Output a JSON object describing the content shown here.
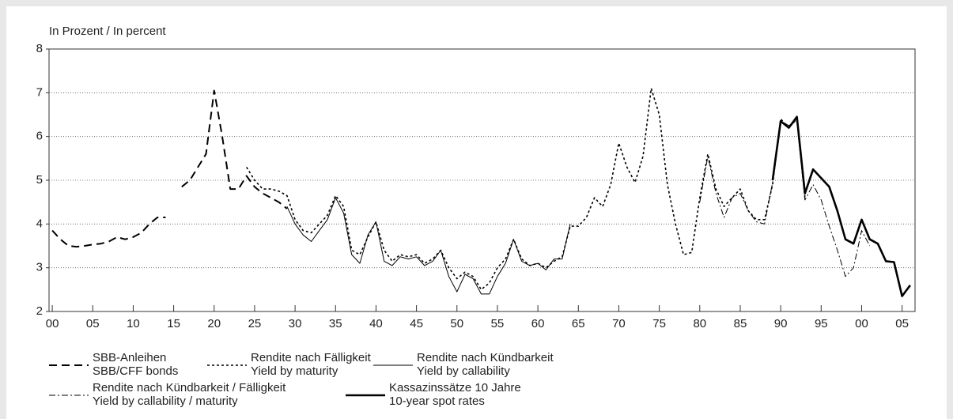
{
  "chart_data": {
    "type": "line",
    "y_label": "In Prozent / In percent",
    "xlim": [
      1899.6,
      2006.6
    ],
    "ylim": [
      2,
      8
    ],
    "yticks": [
      2,
      3,
      4,
      5,
      6,
      7,
      8
    ],
    "xticks": [
      {
        "value": 1900,
        "label": "00"
      },
      {
        "value": 1905,
        "label": "05"
      },
      {
        "value": 1910,
        "label": "10"
      },
      {
        "value": 1915,
        "label": "15"
      },
      {
        "value": 1920,
        "label": "20"
      },
      {
        "value": 1925,
        "label": "25"
      },
      {
        "value": 1930,
        "label": "30"
      },
      {
        "value": 1935,
        "label": "35"
      },
      {
        "value": 1940,
        "label": "40"
      },
      {
        "value": 1945,
        "label": "45"
      },
      {
        "value": 1950,
        "label": "50"
      },
      {
        "value": 1955,
        "label": "55"
      },
      {
        "value": 1960,
        "label": "60"
      },
      {
        "value": 1965,
        "label": "65"
      },
      {
        "value": 1970,
        "label": "70"
      },
      {
        "value": 1975,
        "label": "75"
      },
      {
        "value": 1980,
        "label": "80"
      },
      {
        "value": 1985,
        "label": "85"
      },
      {
        "value": 1990,
        "label": "90"
      },
      {
        "value": 1995,
        "label": "95"
      },
      {
        "value": 2000,
        "label": "00"
      },
      {
        "value": 2005,
        "label": "05"
      }
    ],
    "grid": true,
    "series": [
      {
        "name": [
          "SBB-Anleihen",
          "SBB/CFF bonds"
        ],
        "style": "dashed",
        "color": "#000000",
        "x": [
          1900,
          1901,
          1902,
          1903,
          1904,
          1905,
          1906,
          1907,
          1908,
          1909,
          1910,
          1911,
          1912,
          1913,
          1914,
          1915,
          1916,
          1917,
          1918,
          1919,
          1920,
          1921,
          1922,
          1923,
          1924,
          1925,
          1926,
          1927,
          1928,
          1929
        ],
        "values": [
          3.85,
          3.65,
          3.5,
          3.48,
          3.5,
          3.53,
          3.55,
          3.6,
          3.7,
          3.65,
          3.7,
          3.8,
          4.0,
          4.15,
          4.15,
          null,
          4.85,
          5.0,
          5.3,
          5.6,
          7.05,
          6.0,
          4.8,
          4.8,
          5.1,
          4.85,
          4.7,
          4.6,
          4.5,
          4.35
        ]
      },
      {
        "name": [
          "Rendite nach Fälligkeit",
          "Yield by maturity"
        ],
        "style": "dotted",
        "color": "#000000",
        "x": [
          1924,
          1925,
          1926,
          1927,
          1928,
          1929,
          1930,
          1931,
          1932,
          1933,
          1934,
          1935,
          1936,
          1937,
          1938,
          1939,
          1940,
          1941,
          1942,
          1943,
          1944,
          1945,
          1946,
          1947,
          1948,
          1949,
          1950,
          1951,
          1952,
          1953,
          1954,
          1955,
          1956,
          1957,
          1958,
          1959,
          1960,
          1961,
          1962,
          1963,
          1964,
          1965,
          1966,
          1967,
          1968,
          1969,
          1970,
          1971,
          1972,
          1973,
          1974,
          1975,
          1976,
          1977,
          1978,
          1979,
          1980,
          1981,
          1982,
          1983,
          1984,
          1985,
          1986,
          1987,
          1988,
          1989,
          1990,
          1991,
          1992,
          1993
        ],
        "values": [
          5.3,
          5.0,
          4.8,
          4.8,
          4.75,
          4.65,
          4.1,
          3.85,
          3.8,
          4.0,
          4.2,
          4.65,
          4.4,
          3.4,
          3.3,
          3.7,
          4.05,
          3.4,
          3.15,
          3.3,
          3.25,
          3.3,
          3.1,
          3.2,
          3.4,
          3.0,
          2.75,
          2.9,
          2.8,
          2.5,
          2.65,
          3.0,
          3.2,
          3.65,
          3.2,
          3.05,
          3.1,
          3.0,
          3.15,
          3.25,
          3.95,
          3.95,
          4.15,
          4.6,
          4.4,
          4.9,
          5.85,
          5.3,
          4.95,
          5.55,
          7.1,
          6.5,
          4.9,
          4.0,
          3.3,
          3.35,
          4.6,
          5.6,
          4.8,
          4.4,
          4.6,
          4.8,
          4.3,
          4.1,
          4.1,
          4.9,
          6.4,
          6.2,
          6.4,
          4.6
        ]
      },
      {
        "name": [
          "Rendite nach Kündbarkeit",
          "Yield by callability"
        ],
        "style": "thin",
        "color": "#000000",
        "x": [
          1929,
          1930,
          1931,
          1932,
          1933,
          1934,
          1935,
          1936,
          1937,
          1938,
          1939,
          1940,
          1941,
          1942,
          1943,
          1944,
          1945,
          1946,
          1947,
          1948,
          1949,
          1950,
          1951,
          1952,
          1953,
          1954,
          1955,
          1956,
          1957,
          1958,
          1959,
          1960,
          1961,
          1962,
          1963,
          1964
        ],
        "values": [
          4.4,
          4.0,
          3.75,
          3.6,
          3.85,
          4.1,
          4.6,
          4.25,
          3.3,
          3.1,
          3.75,
          4.05,
          3.15,
          3.05,
          3.25,
          3.2,
          3.25,
          3.05,
          3.15,
          3.4,
          2.8,
          2.45,
          2.85,
          2.75,
          2.4,
          2.4,
          2.8,
          3.1,
          3.65,
          3.15,
          3.05,
          3.1,
          2.95,
          3.2,
          3.2,
          4.0
        ]
      },
      {
        "name": [
          "Rendite nach Kündbarkeit / Fälligkeit",
          "Yield by callability / maturity"
        ],
        "style": "dashdot",
        "color": "#000000",
        "x": [
          1980,
          1981,
          1982,
          1983,
          1984,
          1985,
          1986,
          1987,
          1988,
          1989,
          1990,
          1991,
          1992,
          1993,
          1994,
          1995,
          1996,
          1997,
          1998,
          1999,
          2000,
          2001
        ],
        "values": [
          4.5,
          5.55,
          4.7,
          4.15,
          4.6,
          4.7,
          4.3,
          4.05,
          4.0,
          4.95,
          6.35,
          6.25,
          6.35,
          4.55,
          4.9,
          4.55,
          3.95,
          3.4,
          2.8,
          3.0,
          3.85,
          3.5
        ]
      },
      {
        "name": [
          "Kassazinssätze 10 Jahre",
          "10-year spot rates"
        ],
        "style": "thick",
        "color": "#000000",
        "x": [
          1989,
          1990,
          1991,
          1992,
          1993,
          1994,
          1995,
          1996,
          1997,
          1998,
          1999,
          2000,
          2001,
          2002,
          2003,
          2004,
          2005,
          2006
        ],
        "values": [
          5.0,
          6.35,
          6.2,
          6.45,
          4.7,
          5.25,
          5.05,
          4.85,
          4.3,
          3.65,
          3.55,
          4.1,
          3.65,
          3.55,
          3.15,
          3.13,
          2.35,
          2.6
        ]
      }
    ]
  }
}
